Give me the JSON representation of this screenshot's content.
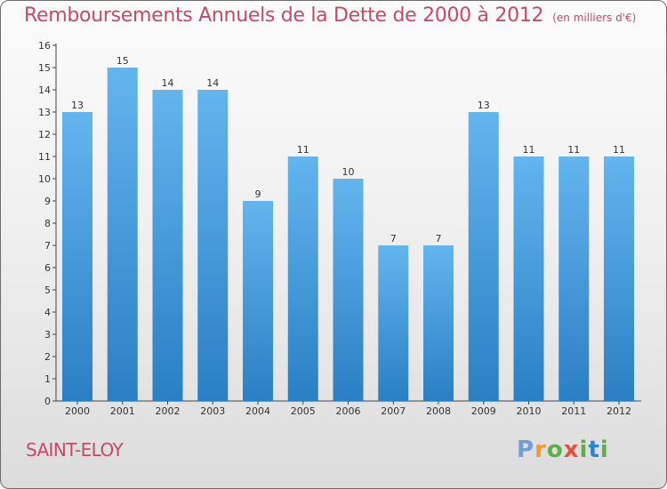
{
  "header": {
    "title": "Remboursements Annuels de la Dette de 2000 à 2012",
    "unit": "(en milliers d'€)"
  },
  "footer": {
    "commune": "SAINT-ELOY",
    "logo_text": "Proxiti"
  },
  "colors": {
    "bar_light": "#63b5ee",
    "bar_dark": "#2a7fc4",
    "title": "#c44a6a"
  },
  "chart_data": {
    "type": "bar",
    "title": "Remboursements Annuels de la Dette de 2000 à 2012",
    "xlabel": "",
    "ylabel": "",
    "categories": [
      "2000",
      "2001",
      "2002",
      "2003",
      "2004",
      "2005",
      "2006",
      "2007",
      "2008",
      "2009",
      "2010",
      "2011",
      "2012"
    ],
    "values": [
      13,
      15,
      14,
      14,
      9,
      11,
      10,
      7,
      7,
      13,
      11,
      11,
      11
    ],
    "ylim": [
      0,
      16
    ],
    "yticks": [
      0,
      1,
      2,
      3,
      4,
      5,
      6,
      7,
      8,
      9,
      10,
      11,
      12,
      13,
      14,
      15,
      16
    ],
    "grid": false,
    "legend": "none"
  }
}
